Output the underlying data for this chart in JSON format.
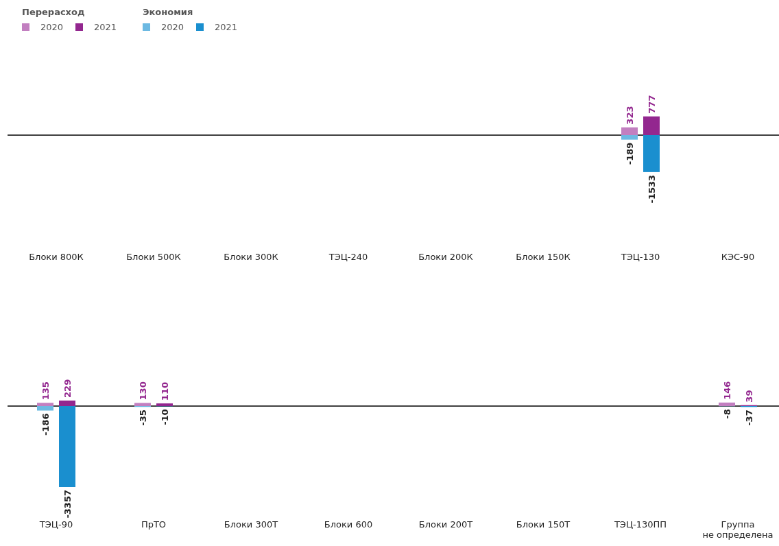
{
  "chart_data": [
    {
      "type": "bar",
      "data_labels": true,
      "legend": "top left",
      "legend_title": [
        "Перерасход",
        "Экономия"
      ],
      "categories": [
        "Блоки 800К",
        "Блоки 500К",
        "Блоки 300К",
        "ТЭЦ-240",
        "Блоки 200К",
        "Блоки 150К",
        "ТЭЦ-130",
        "КЭС-90"
      ],
      "series": [
        {
          "name": "2020",
          "color": "#c27fc0",
          "values": [
            null,
            null,
            null,
            null,
            null,
            null,
            323,
            null
          ]
        },
        {
          "name": "2021",
          "color": "#93278f",
          "values": [
            null,
            null,
            null,
            null,
            null,
            null,
            777,
            null
          ]
        },
        {
          "name": "2020",
          "color": "#6cb9e2",
          "values": [
            null,
            null,
            null,
            null,
            null,
            null,
            -189,
            null
          ]
        },
        {
          "name": "2021",
          "color": "#1a8fcf",
          "values": [
            null,
            null,
            null,
            null,
            null,
            null,
            -1533,
            null
          ]
        }
      ]
    },
    {
      "type": "bar",
      "data_labels": true,
      "categories": [
        "ТЭЦ-90",
        "ПрТО",
        "Блоки 300Т",
        "Блоки 600",
        "Блоки 200Т",
        "Блоки 150Т",
        "ТЭЦ-130ПП",
        "Группа не определена"
      ],
      "series": [
        {
          "color": "#c27fc0",
          "values": [
            135,
            130,
            null,
            null,
            null,
            null,
            null,
            146
          ]
        },
        {
          "color": "#93278f",
          "values": [
            229,
            110,
            null,
            null,
            null,
            null,
            null,
            39
          ]
        },
        {
          "color": "#6cb9e2",
          "values": [
            -186,
            -35,
            null,
            null,
            null,
            null,
            null,
            -8
          ]
        },
        {
          "color": "#1a8fcf",
          "values": [
            -3357,
            -10,
            null,
            null,
            null,
            null,
            null,
            -37
          ]
        }
      ]
    }
  ]
}
